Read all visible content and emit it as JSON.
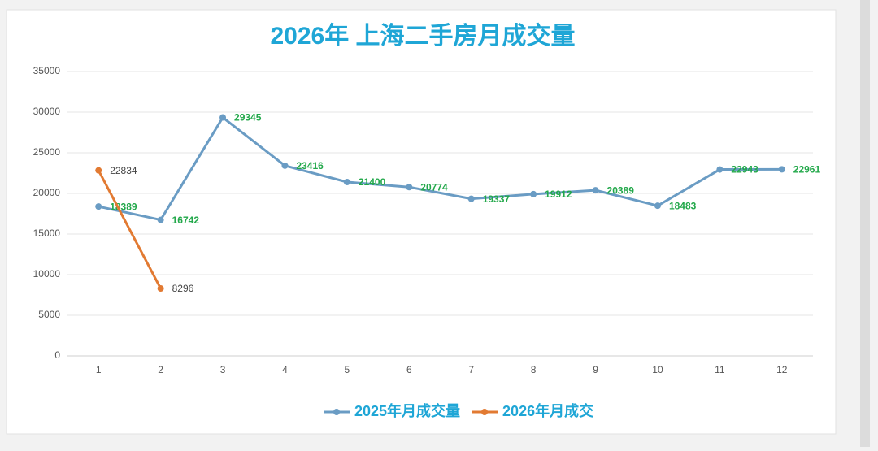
{
  "chart_data": {
    "type": "line",
    "title": "2026年 上海二手房月成交量",
    "categories": [
      1,
      2,
      3,
      4,
      5,
      6,
      7,
      8,
      9,
      10,
      11,
      12
    ],
    "series": [
      {
        "name": "2025年月成交量",
        "color": "#6a9cc4",
        "label_color": "#22a84a",
        "values": [
          18389,
          16742,
          29345,
          23416,
          21400,
          20774,
          19337,
          19912,
          20389,
          18483,
          22943,
          22961
        ]
      },
      {
        "name": "2026年月成交",
        "color": "#e27a32",
        "label_color": "#444444",
        "values": [
          22834,
          8296,
          null,
          null,
          null,
          null,
          null,
          null,
          null,
          null,
          null,
          null
        ]
      }
    ],
    "ylim": [
      0,
      35000
    ],
    "yticks": [
      0,
      5000,
      10000,
      15000,
      20000,
      25000,
      30000,
      35000
    ],
    "grid": true,
    "title_color": "#1fa6d6",
    "legend": "bottom"
  }
}
